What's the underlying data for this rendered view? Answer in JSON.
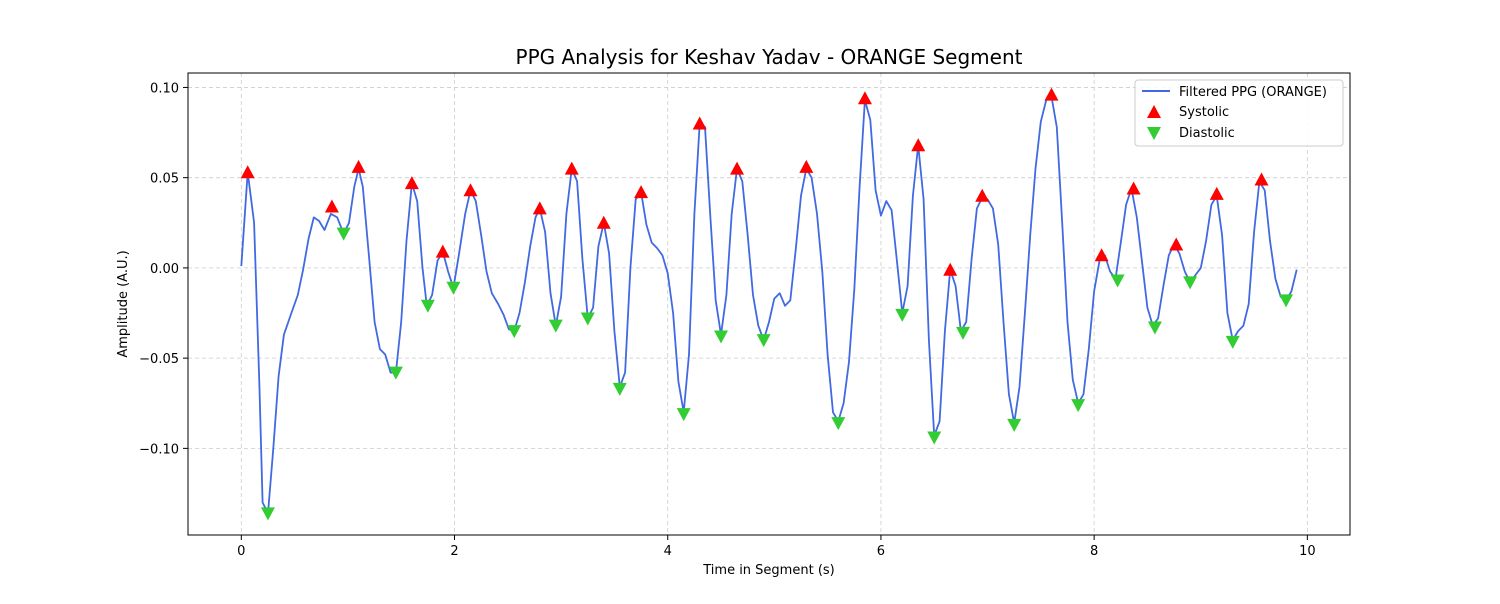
{
  "chart_data": {
    "type": "line",
    "title": "PPG Analysis for Keshav Yadav - ORANGE Segment",
    "xlabel": "Time in Segment (s)",
    "ylabel": "Amplitude (A.U.)",
    "xlim": [
      -0.5,
      10.4
    ],
    "ylim": [
      -0.148,
      0.108
    ],
    "x_ticks": [
      0,
      2,
      4,
      6,
      8,
      10
    ],
    "x_tick_labels": [
      "0",
      "2",
      "4",
      "6",
      "8",
      "10"
    ],
    "y_ticks": [
      -0.1,
      -0.05,
      0.0,
      0.05,
      0.1
    ],
    "y_tick_labels": [
      "−0.10",
      "−0.05",
      "0.00",
      "0.05",
      "0.10"
    ],
    "grid": true,
    "legend_position": "top-right",
    "colors": {
      "line": "#4169e1",
      "systolic": "#ff0000",
      "diastolic": "#32cd32",
      "grid": "#cccccc"
    },
    "series": [
      {
        "name": "Filtered PPG (ORANGE)",
        "kind": "line",
        "points": [
          [
            0.0,
            0.001
          ],
          [
            0.06,
            0.053
          ],
          [
            0.12,
            0.025
          ],
          [
            0.17,
            -0.065
          ],
          [
            0.2,
            -0.13
          ],
          [
            0.25,
            -0.136
          ],
          [
            0.3,
            -0.1
          ],
          [
            0.35,
            -0.06
          ],
          [
            0.4,
            -0.037
          ],
          [
            0.47,
            -0.025
          ],
          [
            0.53,
            -0.015
          ],
          [
            0.58,
            -0.001
          ],
          [
            0.63,
            0.016
          ],
          [
            0.68,
            0.028
          ],
          [
            0.73,
            0.026
          ],
          [
            0.78,
            0.021
          ],
          [
            0.84,
            0.03
          ],
          [
            0.9,
            0.028
          ],
          [
            0.96,
            0.019
          ],
          [
            1.01,
            0.025
          ],
          [
            1.06,
            0.045
          ],
          [
            1.1,
            0.055
          ],
          [
            1.14,
            0.045
          ],
          [
            1.2,
            0.005
          ],
          [
            1.25,
            -0.03
          ],
          [
            1.3,
            -0.045
          ],
          [
            1.35,
            -0.048
          ],
          [
            1.4,
            -0.058
          ],
          [
            1.45,
            -0.058
          ],
          [
            1.5,
            -0.03
          ],
          [
            1.55,
            0.015
          ],
          [
            1.6,
            0.047
          ],
          [
            1.65,
            0.037
          ],
          [
            1.7,
            0.0
          ],
          [
            1.74,
            -0.021
          ],
          [
            1.79,
            -0.015
          ],
          [
            1.84,
            0.004
          ],
          [
            1.89,
            0.009
          ],
          [
            1.94,
            -0.002
          ],
          [
            1.99,
            -0.011
          ],
          [
            2.04,
            0.007
          ],
          [
            2.1,
            0.03
          ],
          [
            2.15,
            0.043
          ],
          [
            2.2,
            0.037
          ],
          [
            2.25,
            0.018
          ],
          [
            2.3,
            -0.002
          ],
          [
            2.35,
            -0.014
          ],
          [
            2.41,
            -0.02
          ],
          [
            2.46,
            -0.026
          ],
          [
            2.51,
            -0.034
          ],
          [
            2.56,
            -0.035
          ],
          [
            2.61,
            -0.025
          ],
          [
            2.66,
            -0.008
          ],
          [
            2.71,
            0.012
          ],
          [
            2.76,
            0.028
          ],
          [
            2.8,
            0.033
          ],
          [
            2.85,
            0.02
          ],
          [
            2.9,
            -0.014
          ],
          [
            2.95,
            -0.032
          ],
          [
            3.0,
            -0.016
          ],
          [
            3.05,
            0.03
          ],
          [
            3.1,
            0.055
          ],
          [
            3.15,
            0.048
          ],
          [
            3.2,
            0.005
          ],
          [
            3.25,
            -0.028
          ],
          [
            3.3,
            -0.022
          ],
          [
            3.35,
            0.012
          ],
          [
            3.4,
            0.025
          ],
          [
            3.45,
            0.008
          ],
          [
            3.5,
            -0.035
          ],
          [
            3.55,
            -0.066
          ],
          [
            3.6,
            -0.058
          ],
          [
            3.65,
            0.0
          ],
          [
            3.7,
            0.038
          ],
          [
            3.75,
            0.042
          ],
          [
            3.8,
            0.024
          ],
          [
            3.85,
            0.014
          ],
          [
            3.9,
            0.011
          ],
          [
            3.95,
            0.007
          ],
          [
            4.0,
            -0.003
          ],
          [
            4.05,
            -0.025
          ],
          [
            4.1,
            -0.063
          ],
          [
            4.15,
            -0.08
          ],
          [
            4.2,
            -0.048
          ],
          [
            4.25,
            0.03
          ],
          [
            4.3,
            0.08
          ],
          [
            4.35,
            0.078
          ],
          [
            4.4,
            0.028
          ],
          [
            4.45,
            -0.018
          ],
          [
            4.5,
            -0.037
          ],
          [
            4.55,
            -0.015
          ],
          [
            4.6,
            0.03
          ],
          [
            4.65,
            0.055
          ],
          [
            4.7,
            0.048
          ],
          [
            4.75,
            0.018
          ],
          [
            4.8,
            -0.015
          ],
          [
            4.85,
            -0.032
          ],
          [
            4.9,
            -0.04
          ],
          [
            4.95,
            -0.03
          ],
          [
            5.0,
            -0.017
          ],
          [
            5.05,
            -0.014
          ],
          [
            5.1,
            -0.021
          ],
          [
            5.15,
            -0.018
          ],
          [
            5.2,
            0.01
          ],
          [
            5.25,
            0.04
          ],
          [
            5.3,
            0.055
          ],
          [
            5.35,
            0.05
          ],
          [
            5.4,
            0.03
          ],
          [
            5.45,
            -0.002
          ],
          [
            5.5,
            -0.048
          ],
          [
            5.55,
            -0.08
          ],
          [
            5.6,
            -0.085
          ],
          [
            5.65,
            -0.075
          ],
          [
            5.7,
            -0.052
          ],
          [
            5.75,
            -0.012
          ],
          [
            5.8,
            0.045
          ],
          [
            5.85,
            0.093
          ],
          [
            5.9,
            0.082
          ],
          [
            5.95,
            0.043
          ],
          [
            6.0,
            0.029
          ],
          [
            6.05,
            0.037
          ],
          [
            6.1,
            0.032
          ],
          [
            6.15,
            0.004
          ],
          [
            6.2,
            -0.025
          ],
          [
            6.25,
            -0.01
          ],
          [
            6.3,
            0.04
          ],
          [
            6.35,
            0.068
          ],
          [
            6.4,
            0.038
          ],
          [
            6.45,
            -0.04
          ],
          [
            6.5,
            -0.093
          ],
          [
            6.55,
            -0.085
          ],
          [
            6.6,
            -0.035
          ],
          [
            6.65,
            -0.001
          ],
          [
            6.7,
            -0.01
          ],
          [
            6.75,
            -0.035
          ],
          [
            6.8,
            -0.03
          ],
          [
            6.85,
            0.005
          ],
          [
            6.9,
            0.033
          ],
          [
            6.95,
            0.039
          ],
          [
            7.0,
            0.038
          ],
          [
            7.05,
            0.033
          ],
          [
            7.1,
            0.013
          ],
          [
            7.15,
            -0.03
          ],
          [
            7.2,
            -0.07
          ],
          [
            7.25,
            -0.086
          ],
          [
            7.3,
            -0.066
          ],
          [
            7.35,
            -0.025
          ],
          [
            7.4,
            0.018
          ],
          [
            7.45,
            0.055
          ],
          [
            7.5,
            0.081
          ],
          [
            7.55,
            0.093
          ],
          [
            7.6,
            0.095
          ],
          [
            7.65,
            0.078
          ],
          [
            7.7,
            0.025
          ],
          [
            7.75,
            -0.03
          ],
          [
            7.8,
            -0.062
          ],
          [
            7.85,
            -0.075
          ],
          [
            7.9,
            -0.07
          ],
          [
            7.95,
            -0.045
          ],
          [
            8.0,
            -0.013
          ],
          [
            8.05,
            0.004
          ],
          [
            8.1,
            0.007
          ],
          [
            8.15,
            -0.002
          ],
          [
            8.2,
            -0.006
          ],
          [
            8.25,
            0.014
          ],
          [
            8.3,
            0.035
          ],
          [
            8.35,
            0.044
          ],
          [
            8.4,
            0.028
          ],
          [
            8.45,
            0.003
          ],
          [
            8.5,
            -0.022
          ],
          [
            8.55,
            -0.032
          ],
          [
            8.6,
            -0.028
          ],
          [
            8.65,
            -0.01
          ],
          [
            8.7,
            0.007
          ],
          [
            8.75,
            0.013
          ],
          [
            8.8,
            0.008
          ],
          [
            8.85,
            -0.002
          ],
          [
            8.9,
            -0.008
          ],
          [
            8.95,
            -0.004
          ],
          [
            9.0,
            0.0
          ],
          [
            9.05,
            0.015
          ],
          [
            9.1,
            0.035
          ],
          [
            9.15,
            0.04
          ],
          [
            9.2,
            0.018
          ],
          [
            9.25,
            -0.025
          ],
          [
            9.3,
            -0.04
          ],
          [
            9.35,
            -0.035
          ],
          [
            9.4,
            -0.032
          ],
          [
            9.45,
            -0.02
          ],
          [
            9.5,
            0.02
          ],
          [
            9.55,
            0.048
          ],
          [
            9.6,
            0.043
          ],
          [
            9.65,
            0.015
          ],
          [
            9.7,
            -0.006
          ],
          [
            9.75,
            -0.016
          ],
          [
            9.8,
            -0.018
          ],
          [
            9.85,
            -0.013
          ],
          [
            9.9,
            -0.001
          ]
        ]
      },
      {
        "name": "Systolic",
        "kind": "marker-up",
        "points": [
          [
            0.06,
            0.053
          ],
          [
            0.85,
            0.034
          ],
          [
            1.1,
            0.056
          ],
          [
            1.6,
            0.047
          ],
          [
            1.89,
            0.009
          ],
          [
            2.15,
            0.043
          ],
          [
            2.8,
            0.033
          ],
          [
            3.1,
            0.055
          ],
          [
            3.4,
            0.025
          ],
          [
            3.75,
            0.042
          ],
          [
            4.3,
            0.08
          ],
          [
            4.65,
            0.055
          ],
          [
            5.3,
            0.056
          ],
          [
            5.85,
            0.094
          ],
          [
            6.35,
            0.068
          ],
          [
            6.65,
            -0.001
          ],
          [
            6.95,
            0.04
          ],
          [
            7.6,
            0.096
          ],
          [
            8.07,
            0.007
          ],
          [
            8.37,
            0.044
          ],
          [
            8.77,
            0.013
          ],
          [
            9.15,
            0.041
          ],
          [
            9.57,
            0.049
          ]
        ]
      },
      {
        "name": "Diastolic",
        "kind": "marker-down",
        "points": [
          [
            0.25,
            -0.136
          ],
          [
            0.96,
            0.019
          ],
          [
            1.45,
            -0.058
          ],
          [
            1.75,
            -0.021
          ],
          [
            1.99,
            -0.011
          ],
          [
            2.56,
            -0.035
          ],
          [
            2.95,
            -0.032
          ],
          [
            3.25,
            -0.028
          ],
          [
            3.55,
            -0.067
          ],
          [
            4.15,
            -0.081
          ],
          [
            4.5,
            -0.038
          ],
          [
            4.9,
            -0.04
          ],
          [
            5.6,
            -0.086
          ],
          [
            6.2,
            -0.026
          ],
          [
            6.5,
            -0.094
          ],
          [
            6.77,
            -0.036
          ],
          [
            7.25,
            -0.087
          ],
          [
            7.85,
            -0.076
          ],
          [
            8.22,
            -0.007
          ],
          [
            8.57,
            -0.033
          ],
          [
            8.9,
            -0.008
          ],
          [
            9.3,
            -0.041
          ],
          [
            9.8,
            -0.018
          ]
        ]
      }
    ]
  }
}
